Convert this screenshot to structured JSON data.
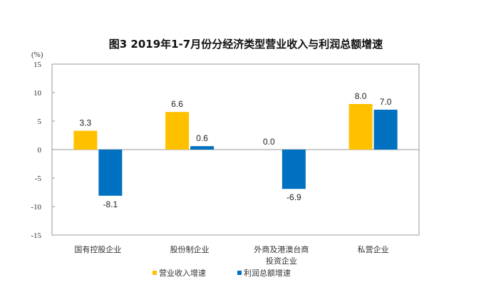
{
  "chart_data": {
    "type": "bar",
    "title": "图3 2019年1-7月份分经济类型营业收入与利润总额增速",
    "unit_label": "(%)",
    "xlabel": "",
    "ylabel": "(%)",
    "ylim": [
      -15,
      15
    ],
    "yticks": [
      15,
      10,
      5,
      0,
      -5,
      -10,
      -15
    ],
    "ytick_labels": [
      "15",
      "10",
      "5",
      "0",
      "-5",
      "-10",
      "-15"
    ],
    "categories": [
      [
        "国有控股企业"
      ],
      [
        "股份制企业"
      ],
      [
        "外商及港澳台商",
        "投资企业"
      ],
      [
        "私营企业"
      ]
    ],
    "series": [
      {
        "name": "营业收入增速",
        "color": "#FFC000",
        "values": [
          3.3,
          6.6,
          0.0,
          8.0
        ],
        "labels": [
          "3.3",
          "6.6",
          "0.0",
          "8.0"
        ]
      },
      {
        "name": "利润总额增速",
        "color": "#0070C0",
        "values": [
          -8.1,
          0.6,
          -6.9,
          7.0
        ],
        "labels": [
          "-8.1",
          "0.6",
          "-6.9",
          "7.0"
        ]
      }
    ],
    "grid": false,
    "legend_position": "bottom"
  }
}
